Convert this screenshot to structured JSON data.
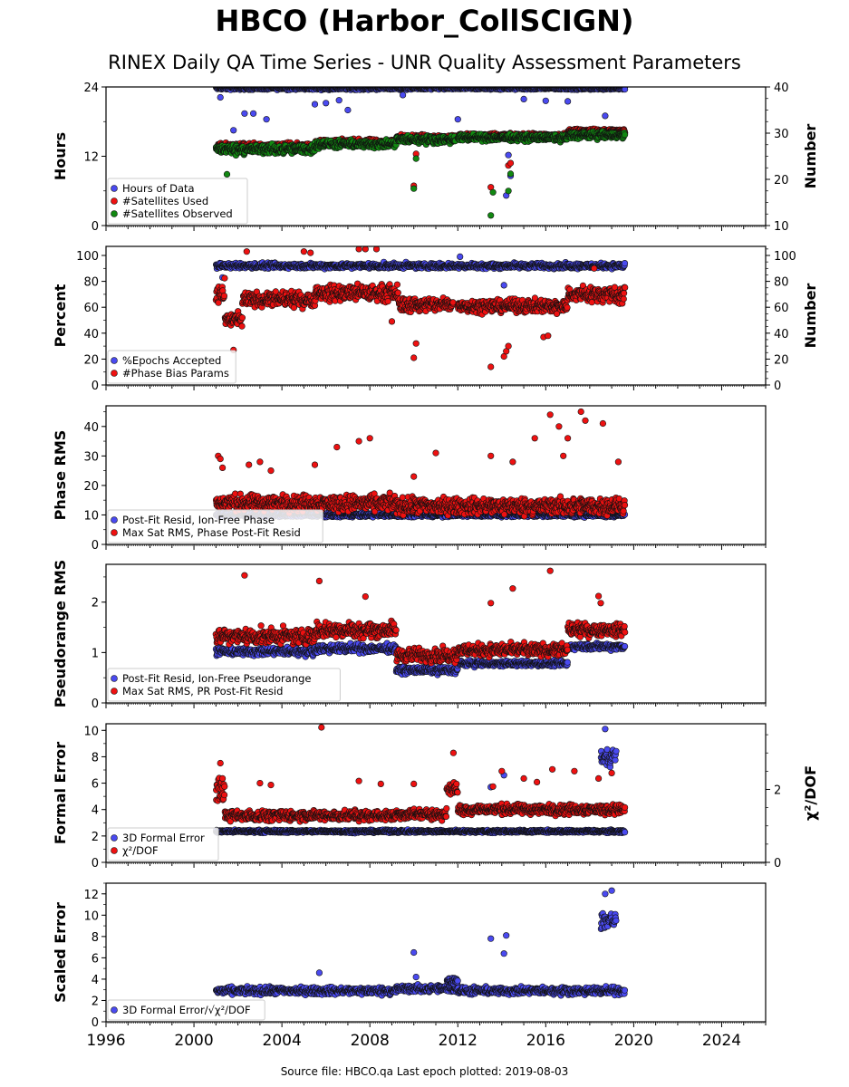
{
  "header": {
    "title": "HBCO (Harbor_CollSCIGN)",
    "subtitle": "RINEX Daily QA Time Series - UNR Quality Assessment Parameters"
  },
  "footer": {
    "text": "Source file: HBCO.qa Last epoch plotted: 2019-08-03"
  },
  "colors": {
    "blue": "#4a4af0",
    "red": "#ee1111",
    "green": "#118811"
  },
  "chart_data": [
    {
      "type": "scatter",
      "name": "hours-panel",
      "ylabel": "Hours",
      "ylabel_right": "Number",
      "xlim": [
        1996,
        2026
      ],
      "ylim": [
        0,
        24
      ],
      "ylim_right": [
        10,
        40
      ],
      "yticks": [
        0,
        12,
        24
      ],
      "yticks_right": [
        10,
        20,
        30,
        40
      ],
      "legend_position": "lower-left",
      "series": [
        {
          "name": "Hours of Data",
          "color": "blue",
          "axis": "left",
          "segments": [
            [
              2001.0,
              2019.6,
              23.8,
              0.4
            ]
          ],
          "outliers": [
            [
              2001.2,
              22.2
            ],
            [
              2001.8,
              16.5
            ],
            [
              2002.3,
              19.4
            ],
            [
              2002.7,
              19.4
            ],
            [
              2003.3,
              18.4
            ],
            [
              2005.5,
              21.0
            ],
            [
              2006.0,
              21.2
            ],
            [
              2006.6,
              21.7
            ],
            [
              2007.0,
              20.0
            ],
            [
              2009.5,
              22.6
            ],
            [
              2012.0,
              18.4
            ],
            [
              2014.2,
              5.2
            ],
            [
              2014.3,
              12.2
            ],
            [
              2014.4,
              8.6
            ],
            [
              2015.0,
              21.9
            ],
            [
              2016.0,
              21.6
            ],
            [
              2017.0,
              21.5
            ],
            [
              2018.7,
              19.0
            ]
          ]
        },
        {
          "name": "#Satellites Used",
          "color": "red",
          "axis": "right",
          "segments": [
            [
              2001.0,
              2005.5,
              27.2,
              1.0
            ],
            [
              2005.5,
              2009.2,
              28.0,
              1.0
            ],
            [
              2009.2,
              2011.9,
              29.0,
              1.0
            ],
            [
              2012.0,
              2017.0,
              29.5,
              0.6
            ],
            [
              2017.0,
              2019.6,
              30.5,
              0.6
            ]
          ],
          "outliers": [
            [
              2010.0,
              18.6
            ],
            [
              2010.1,
              25.5
            ],
            [
              2013.5,
              18.3
            ],
            [
              2014.3,
              23.0
            ],
            [
              2014.4,
              23.5
            ]
          ]
        },
        {
          "name": "#Satellites Observed",
          "color": "green",
          "axis": "right",
          "segments": [
            [
              2001.0,
              2005.5,
              26.5,
              1.5
            ],
            [
              2005.5,
              2009.2,
              27.6,
              1.2
            ],
            [
              2009.2,
              2011.9,
              28.6,
              1.2
            ],
            [
              2012.0,
              2017.0,
              29.0,
              1.0
            ],
            [
              2017.0,
              2019.6,
              29.5,
              1.0
            ]
          ],
          "outliers": [
            [
              2001.5,
              21.1
            ],
            [
              2010.0,
              18.0
            ],
            [
              2010.1,
              24.5
            ],
            [
              2013.5,
              12.2
            ],
            [
              2013.6,
              17.2
            ],
            [
              2014.3,
              17.5
            ],
            [
              2014.4,
              21.2
            ]
          ]
        }
      ]
    },
    {
      "type": "scatter",
      "name": "percent-panel",
      "ylabel": "Percent",
      "ylabel_right": "Number",
      "xlim": [
        1996,
        2026
      ],
      "ylim": [
        0,
        107
      ],
      "ylim_right": [
        0,
        107
      ],
      "yticks": [
        0,
        20,
        40,
        60,
        80,
        100
      ],
      "yticks_right": [
        0,
        20,
        40,
        60,
        80,
        100
      ],
      "legend_position": "lower-left",
      "series": [
        {
          "name": "%Epochs Accepted",
          "color": "blue",
          "axis": "left",
          "segments": [
            [
              2001.0,
              2019.6,
              92,
              3
            ]
          ],
          "outliers": [
            [
              2001.3,
              83
            ],
            [
              2012.1,
              99
            ],
            [
              2014.1,
              77
            ]
          ]
        },
        {
          "name": "#Phase Bias Params",
          "color": "red",
          "axis": "right",
          "segments": [
            [
              2001.0,
              2001.4,
              70,
              14
            ],
            [
              2001.4,
              2002.2,
              50,
              8
            ],
            [
              2002.2,
              2005.5,
              66,
              8
            ],
            [
              2005.5,
              2009.3,
              71,
              9
            ],
            [
              2009.3,
              2011.8,
              62,
              8
            ],
            [
              2012.0,
              2017.0,
              61,
              7
            ],
            [
              2017.0,
              2019.6,
              70,
              9
            ]
          ],
          "outliers": [
            [
              2001.8,
              27
            ],
            [
              2002.4,
              103
            ],
            [
              2005.0,
              103
            ],
            [
              2005.3,
              102
            ],
            [
              2007.5,
              105
            ],
            [
              2007.8,
              105
            ],
            [
              2008.3,
              105
            ],
            [
              2009.0,
              49
            ],
            [
              2010.0,
              21
            ],
            [
              2010.1,
              32
            ],
            [
              2013.5,
              14
            ],
            [
              2014.1,
              22
            ],
            [
              2014.2,
              26
            ],
            [
              2014.3,
              30
            ],
            [
              2015.9,
              37
            ],
            [
              2016.1,
              38
            ],
            [
              2016.5,
              55
            ],
            [
              2018.2,
              90
            ]
          ]
        }
      ]
    },
    {
      "type": "scatter",
      "name": "phase-rms-panel",
      "ylabel": "Phase RMS",
      "xlim": [
        1996,
        2026
      ],
      "ylim": [
        0,
        47
      ],
      "yticks": [
        0,
        10,
        20,
        30,
        40
      ],
      "legend_position": "lower-left",
      "series": [
        {
          "name": "Post-Fit Resid, Ion-Free Phase",
          "color": "blue",
          "segments": [
            [
              2001.0,
              2019.6,
              10,
              1
            ]
          ],
          "outliers": []
        },
        {
          "name": "Max Sat RMS, Phase Post-Fit Resid",
          "color": "red",
          "segments": [
            [
              2001.0,
              2009.2,
              14,
              4
            ],
            [
              2009.2,
              2012.0,
              13,
              4
            ],
            [
              2012.0,
              2019.6,
              13,
              4
            ]
          ],
          "outliers": [
            [
              2001.1,
              30
            ],
            [
              2001.2,
              29
            ],
            [
              2001.3,
              26
            ],
            [
              2002.5,
              27
            ],
            [
              2003.0,
              28
            ],
            [
              2003.5,
              25
            ],
            [
              2005.5,
              27
            ],
            [
              2006.5,
              33
            ],
            [
              2007.5,
              35
            ],
            [
              2008.0,
              36
            ],
            [
              2010.0,
              23
            ],
            [
              2011.0,
              31
            ],
            [
              2013.5,
              30
            ],
            [
              2014.5,
              28
            ],
            [
              2015.5,
              36
            ],
            [
              2016.2,
              44
            ],
            [
              2016.6,
              40
            ],
            [
              2016.8,
              30
            ],
            [
              2017.0,
              36
            ],
            [
              2017.6,
              45
            ],
            [
              2017.8,
              42
            ],
            [
              2018.6,
              41
            ],
            [
              2019.3,
              28
            ]
          ]
        }
      ]
    },
    {
      "type": "scatter",
      "name": "pseudorange-rms-panel",
      "ylabel": "Pseudorange RMS",
      "xlim": [
        1996,
        2026
      ],
      "ylim": [
        0,
        2.75
      ],
      "yticks": [
        0,
        1,
        2
      ],
      "legend_position": "lower-left",
      "series": [
        {
          "name": "Post-Fit Resid, Ion-Free Pseudorange",
          "color": "blue",
          "segments": [
            [
              2001.0,
              2005.5,
              1.02,
              0.12
            ],
            [
              2005.5,
              2009.2,
              1.08,
              0.12
            ],
            [
              2009.2,
              2012.0,
              0.65,
              0.1
            ],
            [
              2012.0,
              2017.0,
              0.78,
              0.08
            ],
            [
              2017.0,
              2019.6,
              1.12,
              0.1
            ]
          ],
          "outliers": []
        },
        {
          "name": "Max Sat RMS, PR Post-Fit Resid",
          "color": "red",
          "segments": [
            [
              2001.0,
              2005.5,
              1.32,
              0.22
            ],
            [
              2005.5,
              2009.2,
              1.45,
              0.22
            ],
            [
              2009.2,
              2012.0,
              0.95,
              0.2
            ],
            [
              2012.0,
              2017.0,
              1.05,
              0.18
            ],
            [
              2017.0,
              2019.6,
              1.45,
              0.18
            ]
          ],
          "outliers": [
            [
              2002.3,
              2.53
            ],
            [
              2005.7,
              2.42
            ],
            [
              2007.8,
              2.11
            ],
            [
              2013.5,
              1.98
            ],
            [
              2014.5,
              2.27
            ],
            [
              2016.2,
              2.62
            ],
            [
              2018.4,
              2.12
            ],
            [
              2018.5,
              1.98
            ]
          ]
        }
      ]
    },
    {
      "type": "scatter",
      "name": "formal-error-panel",
      "ylabel": "Formal Error",
      "ylabel_right": "χ²/DOF",
      "xlim": [
        1996,
        2026
      ],
      "ylim": [
        0,
        10.5
      ],
      "ylim_right": [
        0,
        3.8
      ],
      "yticks": [
        0,
        2,
        4,
        6,
        8,
        10
      ],
      "yticks_right": [
        0,
        2
      ],
      "legend_position": "lower-left",
      "series": [
        {
          "name": "3D Formal Error",
          "color": "blue",
          "axis": "left",
          "segments": [
            [
              2001.0,
              2019.6,
              2.35,
              0.15
            ],
            [
              2018.5,
              2019.2,
              8.0,
              1.0
            ]
          ],
          "outliers": [
            [
              2013.5,
              5.7
            ],
            [
              2014.1,
              6.6
            ],
            [
              2018.7,
              10.1
            ]
          ]
        },
        {
          "name": "χ²/DOF",
          "color": "red",
          "axis": "right",
          "segments": [
            [
              2001.0,
              2001.4,
              2.0,
              0.5
            ],
            [
              2001.4,
              2009.2,
              1.28,
              0.2
            ],
            [
              2009.2,
              2011.5,
              1.32,
              0.2
            ],
            [
              2011.5,
              2012.0,
              2.0,
              0.25
            ],
            [
              2012.0,
              2019.6,
              1.45,
              0.2
            ]
          ],
          "outliers": [
            [
              2001.2,
              2.72
            ],
            [
              2001.3,
              2.3
            ],
            [
              2003.0,
              2.17
            ],
            [
              2003.5,
              2.12
            ],
            [
              2005.8,
              3.7
            ],
            [
              2007.5,
              2.23
            ],
            [
              2008.5,
              2.15
            ],
            [
              2010.0,
              2.15
            ],
            [
              2011.8,
              3.0
            ],
            [
              2013.6,
              2.08
            ],
            [
              2014.0,
              2.5
            ],
            [
              2015.0,
              2.3
            ],
            [
              2015.6,
              2.2
            ],
            [
              2016.3,
              2.55
            ],
            [
              2017.3,
              2.5
            ],
            [
              2018.4,
              2.3
            ],
            [
              2019.0,
              2.45
            ]
          ]
        }
      ]
    },
    {
      "type": "scatter",
      "name": "scaled-error-panel",
      "ylabel": "Scaled Error",
      "xlim": [
        1996,
        2026
      ],
      "ylim": [
        0,
        13
      ],
      "yticks": [
        0,
        2,
        4,
        6,
        8,
        10,
        12
      ],
      "xticks": [
        1996,
        2000,
        2004,
        2008,
        2012,
        2016,
        2020,
        2024
      ],
      "legend_position": "lower-left",
      "series": [
        {
          "name": "3D Formal Error/√χ²/DOF",
          "color": "blue",
          "segments": [
            [
              2001.0,
              2009.2,
              2.9,
              0.5
            ],
            [
              2009.2,
              2012.0,
              3.1,
              0.5
            ],
            [
              2011.5,
              2012.0,
              3.9,
              0.4
            ],
            [
              2012.0,
              2019.6,
              2.9,
              0.5
            ],
            [
              2018.5,
              2019.2,
              9.5,
              1.5
            ]
          ],
          "outliers": [
            [
              2005.7,
              4.6
            ],
            [
              2010.0,
              6.5
            ],
            [
              2010.1,
              4.2
            ],
            [
              2013.5,
              7.8
            ],
            [
              2014.2,
              8.1
            ],
            [
              2014.1,
              6.4
            ],
            [
              2018.7,
              12.0
            ],
            [
              2019.0,
              12.3
            ]
          ]
        }
      ]
    }
  ]
}
